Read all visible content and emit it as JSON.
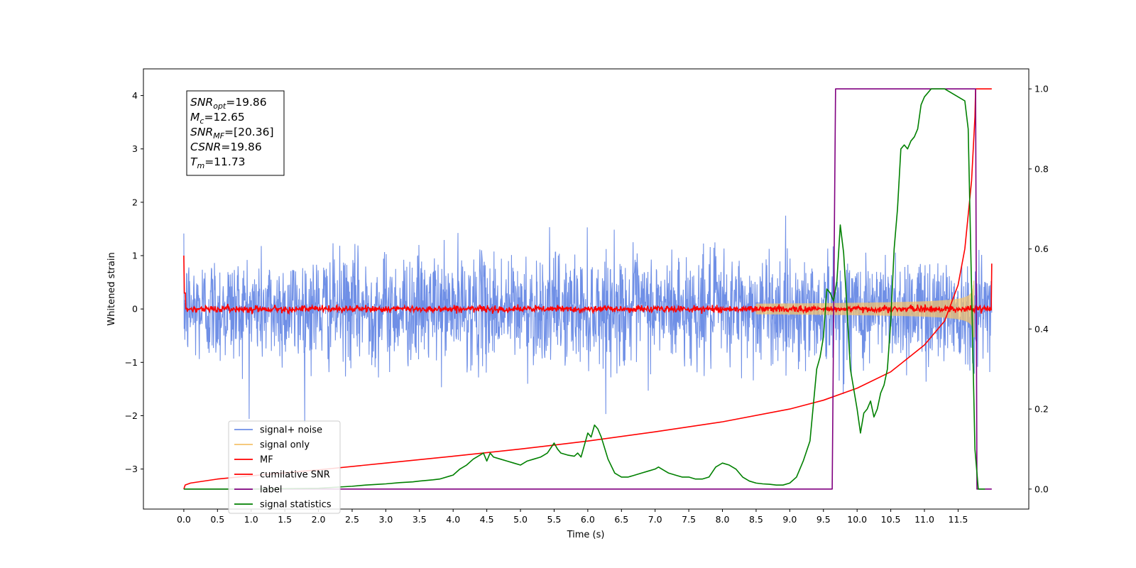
{
  "chart_data": {
    "type": "line",
    "xlabel": "Time (s)",
    "ylabel": "Whitened strain",
    "xlim": [
      -0.6,
      12.55
    ],
    "ylim": [
      -3.75,
      4.5
    ],
    "y2lim": [
      -0.05,
      1.05
    ],
    "x_ticks": [
      "0.0",
      "0.5",
      "1.0",
      "1.5",
      "2.0",
      "2.5",
      "3.0",
      "3.5",
      "4.0",
      "4.5",
      "5.0",
      "5.5",
      "6.0",
      "6.5",
      "7.0",
      "7.5",
      "8.0",
      "8.5",
      "9.0",
      "9.5",
      "10.0",
      "10.5",
      "11.0",
      "11.5"
    ],
    "y_ticks": [
      "−3",
      "−2",
      "−1",
      "0",
      "1",
      "2",
      "3",
      "4"
    ],
    "y2_ticks": [
      "0.0",
      "0.2",
      "0.4",
      "0.6",
      "0.8",
      "1.0"
    ],
    "grid": false,
    "legend_position": "lower-left",
    "info_box": {
      "lines": [
        {
          "main": "SNR",
          "sub": "opt",
          "value": "=19.86"
        },
        {
          "main": "M",
          "sub": "c",
          "value": "=12.65"
        },
        {
          "main": "SNR",
          "sub": "MF",
          "value": "=[20.36]"
        },
        {
          "main": "CSNR",
          "sub": "",
          "value": "=19.86"
        },
        {
          "main": "T",
          "sub": "m",
          "value": "=11.73"
        }
      ]
    },
    "series": [
      {
        "name": "signal+ noise",
        "color": "#6f8fe6",
        "axis": "left",
        "kind": "noise",
        "amplitude": 0.75,
        "x_range": [
          0.0,
          12.0
        ]
      },
      {
        "name": "signal only",
        "color": "#f5c36b",
        "axis": "left",
        "kind": "chirp",
        "merger_time": 11.73,
        "x_range": [
          0.0,
          12.0
        ]
      },
      {
        "name": "MF",
        "color": "#ff0000",
        "axis": "left",
        "kind": "mf-noise",
        "amplitude": 0.03,
        "x_range": [
          0.0,
          12.0
        ]
      },
      {
        "name": "cumilative SNR",
        "color": "#ff0000",
        "axis": "right",
        "x": [
          0.0,
          0.02,
          0.1,
          0.5,
          1.0,
          2.0,
          3.0,
          4.0,
          5.0,
          6.0,
          7.0,
          8.0,
          9.0,
          9.5,
          10.0,
          10.5,
          11.0,
          11.3,
          11.5,
          11.6,
          11.7,
          11.75,
          11.76,
          12.0
        ],
        "y": [
          0.0,
          0.01,
          0.015,
          0.025,
          0.033,
          0.048,
          0.065,
          0.082,
          0.1,
          0.12,
          0.143,
          0.168,
          0.2,
          0.222,
          0.252,
          0.293,
          0.36,
          0.42,
          0.51,
          0.6,
          0.77,
          0.93,
          1.0,
          1.0
        ]
      },
      {
        "name": "label",
        "color": "#800080",
        "axis": "right",
        "x": [
          0.0,
          9.63,
          9.68,
          11.76,
          11.78,
          12.0
        ],
        "y": [
          0.0,
          0.0,
          1.0,
          1.0,
          0.0,
          0.0
        ]
      },
      {
        "name": "signal statistics",
        "color": "#008000",
        "axis": "right",
        "x": [
          0.0,
          0.5,
          1.0,
          1.5,
          2.0,
          2.3,
          2.5,
          2.7,
          2.9,
          3.0,
          3.2,
          3.4,
          3.5,
          3.7,
          3.8,
          4.0,
          4.1,
          4.2,
          4.3,
          4.4,
          4.45,
          4.5,
          4.55,
          4.6,
          4.7,
          4.8,
          4.9,
          5.0,
          5.1,
          5.2,
          5.3,
          5.35,
          5.4,
          5.5,
          5.55,
          5.6,
          5.7,
          5.8,
          5.85,
          5.9,
          5.95,
          6.0,
          6.05,
          6.1,
          6.15,
          6.2,
          6.3,
          6.4,
          6.5,
          6.6,
          6.7,
          6.8,
          6.9,
          7.0,
          7.05,
          7.1,
          7.2,
          7.3,
          7.4,
          7.5,
          7.6,
          7.7,
          7.8,
          7.9,
          8.0,
          8.1,
          8.2,
          8.3,
          8.4,
          8.5,
          8.6,
          8.7,
          8.8,
          8.9,
          9.0,
          9.1,
          9.2,
          9.3,
          9.4,
          9.45,
          9.5,
          9.55,
          9.6,
          9.65,
          9.7,
          9.75,
          9.8,
          9.85,
          9.9,
          10.0,
          10.05,
          10.1,
          10.15,
          10.2,
          10.25,
          10.3,
          10.35,
          10.4,
          10.45,
          10.5,
          10.55,
          10.6,
          10.65,
          10.7,
          10.75,
          10.8,
          10.85,
          10.9,
          10.95,
          11.0,
          11.1,
          11.2,
          11.3,
          11.4,
          11.5,
          11.6,
          11.65,
          11.7,
          11.75,
          11.8,
          11.9
        ],
        "y": [
          0.0,
          0.0,
          0.0,
          0.001,
          0.002,
          0.005,
          0.007,
          0.01,
          0.012,
          0.013,
          0.016,
          0.018,
          0.02,
          0.023,
          0.025,
          0.035,
          0.05,
          0.06,
          0.075,
          0.085,
          0.09,
          0.07,
          0.09,
          0.08,
          0.075,
          0.07,
          0.065,
          0.06,
          0.07,
          0.075,
          0.08,
          0.085,
          0.09,
          0.115,
          0.1,
          0.09,
          0.085,
          0.082,
          0.09,
          0.08,
          0.11,
          0.14,
          0.13,
          0.16,
          0.15,
          0.13,
          0.075,
          0.04,
          0.03,
          0.03,
          0.035,
          0.04,
          0.045,
          0.05,
          0.055,
          0.05,
          0.04,
          0.035,
          0.03,
          0.03,
          0.025,
          0.025,
          0.03,
          0.055,
          0.065,
          0.06,
          0.05,
          0.03,
          0.02,
          0.015,
          0.013,
          0.012,
          0.01,
          0.01,
          0.015,
          0.03,
          0.07,
          0.12,
          0.3,
          0.33,
          0.38,
          0.5,
          0.49,
          0.47,
          0.52,
          0.66,
          0.59,
          0.45,
          0.3,
          0.2,
          0.14,
          0.19,
          0.2,
          0.22,
          0.18,
          0.2,
          0.24,
          0.26,
          0.3,
          0.42,
          0.6,
          0.7,
          0.85,
          0.86,
          0.85,
          0.87,
          0.88,
          0.9,
          0.96,
          0.98,
          1.0,
          1.0,
          1.0,
          0.99,
          0.98,
          0.97,
          0.9,
          0.5,
          0.1,
          0.0,
          0.0
        ]
      }
    ]
  }
}
